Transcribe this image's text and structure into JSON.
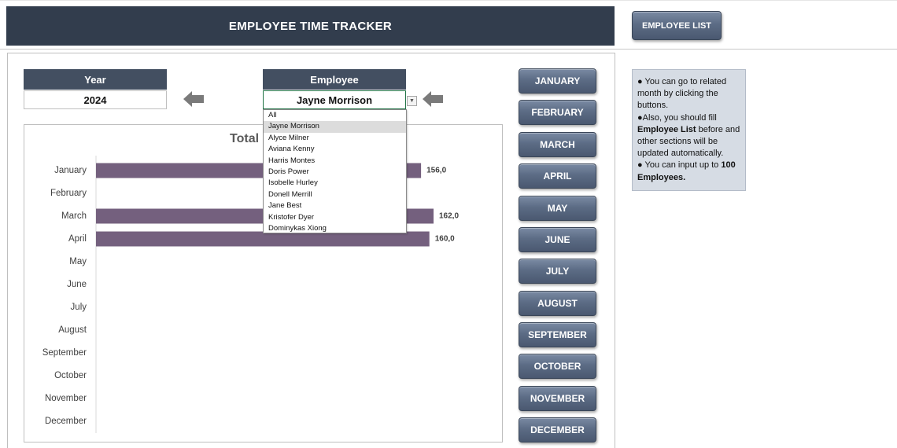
{
  "header": {
    "title": "EMPLOYEE TIME TRACKER",
    "employee_list_button": "EMPLOYEE LIST"
  },
  "filters": {
    "year_label": "Year",
    "year_value": "2024",
    "employee_label": "Employee",
    "employee_value": "Jayne Morrison"
  },
  "dropdown": {
    "options": [
      "All",
      "Jayne Morrison",
      "Alyce Milner",
      "Aviana Kenny",
      "Harris Montes",
      "Doris Power",
      "Isobelle Hurley",
      "Donell Merrill",
      "Jane Best",
      "Kristofer Dyer",
      "Dominykas Xiong"
    ],
    "selected": "Jayne Morrison"
  },
  "month_buttons": [
    "JANUARY",
    "FEBRUARY",
    "MARCH",
    "APRIL",
    "MAY",
    "JUNE",
    "JULY",
    "AUGUST",
    "SEPTEMBER",
    "OCTOBER",
    "NOVEMBER",
    "DECEMBER"
  ],
  "info": {
    "line1": "● You can go to related month by clicking the buttons.",
    "line2_pre": "●Also, you should fill ",
    "line2_bold": "Employee List",
    "line2_post": " before and other sections will be updated automatically.",
    "line3_pre": "● You can input up to ",
    "line3_bold": "100 Employees."
  },
  "colors": {
    "header_bg": "#323d4d",
    "label_bg": "#434f61",
    "bar": "#74607e",
    "info_bg": "#d6dce4",
    "button": "#5c6c85"
  },
  "icons": {
    "year_arrow": "arrow-left-icon",
    "employee_arrow": "arrow-left-icon",
    "dropdown": "chevron-down-icon"
  },
  "chart_data": {
    "type": "bar",
    "orientation": "horizontal",
    "title": "Total",
    "categories": [
      "January",
      "February",
      "March",
      "April",
      "May",
      "June",
      "July",
      "August",
      "September",
      "October",
      "November",
      "December"
    ],
    "values": [
      156.0,
      null,
      162.0,
      160.0,
      null,
      null,
      null,
      null,
      null,
      null,
      null,
      null
    ],
    "data_labels": [
      "156,0",
      "",
      "162,0",
      "160,0",
      "",
      "",
      "",
      "",
      "",
      "",
      "",
      ""
    ],
    "xlim": [
      0,
      165
    ],
    "grid": false,
    "legend": "none"
  }
}
